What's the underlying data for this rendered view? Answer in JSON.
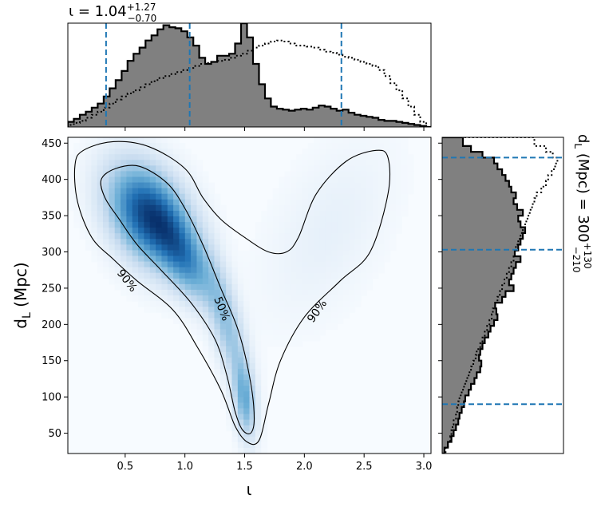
{
  "chart_data": {
    "type": "corner-plot",
    "colors": {
      "hist_fill": "#808080",
      "hist_edge": "#000000",
      "quantile_line": "#1f77b4",
      "density_light": "#f7fbff",
      "density_dark": "#08306b",
      "contour": "#000000"
    },
    "top": {
      "title_base": "ι = 1.04",
      "title_sup": "+1.27",
      "title_sub": "−0.70",
      "xlim": [
        0.02,
        3.06
      ],
      "quantiles": [
        0.34,
        1.04,
        2.31
      ],
      "bins_x": [
        0.02,
        0.07,
        0.12,
        0.17,
        0.22,
        0.27,
        0.32,
        0.37,
        0.42,
        0.47,
        0.52,
        0.57,
        0.62,
        0.67,
        0.72,
        0.77,
        0.82,
        0.87,
        0.92,
        0.97,
        1.02,
        1.07,
        1.12,
        1.17,
        1.22,
        1.27,
        1.32,
        1.37,
        1.42,
        1.47,
        1.52,
        1.57,
        1.62,
        1.67,
        1.72,
        1.77,
        1.82,
        1.87,
        1.92,
        1.97,
        2.02,
        2.07,
        2.12,
        2.17,
        2.22,
        2.27,
        2.32,
        2.37,
        2.42,
        2.47,
        2.52,
        2.57,
        2.62,
        2.67,
        2.72,
        2.77,
        2.82,
        2.87,
        2.92,
        2.97,
        3.02,
        3.06
      ],
      "hist_solid": [
        0.05,
        0.08,
        0.12,
        0.15,
        0.19,
        0.23,
        0.3,
        0.38,
        0.46,
        0.55,
        0.65,
        0.72,
        0.78,
        0.85,
        0.9,
        0.96,
        1.0,
        0.98,
        0.97,
        0.94,
        0.88,
        0.8,
        0.68,
        0.62,
        0.64,
        0.7,
        0.7,
        0.72,
        0.82,
        1.02,
        0.88,
        0.62,
        0.42,
        0.28,
        0.2,
        0.18,
        0.17,
        0.16,
        0.17,
        0.18,
        0.17,
        0.19,
        0.21,
        0.2,
        0.18,
        0.16,
        0.17,
        0.14,
        0.12,
        0.11,
        0.1,
        0.09,
        0.07,
        0.06,
        0.06,
        0.05,
        0.04,
        0.03,
        0.02,
        0.01,
        0.0
      ],
      "hist_dotted": [
        0.02,
        0.04,
        0.06,
        0.09,
        0.12,
        0.15,
        0.19,
        0.23,
        0.27,
        0.3,
        0.33,
        0.36,
        0.39,
        0.42,
        0.45,
        0.48,
        0.5,
        0.52,
        0.54,
        0.56,
        0.58,
        0.6,
        0.62,
        0.63,
        0.64,
        0.65,
        0.66,
        0.68,
        0.7,
        0.72,
        0.75,
        0.78,
        0.8,
        0.82,
        0.84,
        0.85,
        0.84,
        0.82,
        0.8,
        0.8,
        0.79,
        0.78,
        0.76,
        0.74,
        0.73,
        0.71,
        0.69,
        0.68,
        0.66,
        0.64,
        0.62,
        0.6,
        0.56,
        0.5,
        0.43,
        0.36,
        0.28,
        0.2,
        0.12,
        0.05,
        0.0
      ]
    },
    "main": {
      "xlabel": "ι",
      "ylabel_base": "d",
      "ylabel_sub": "L",
      "ylabel_suffix": " (Mpc)",
      "xlim": [
        0.02,
        3.06
      ],
      "ylim": [
        22,
        458
      ],
      "xticks": [
        0.5,
        1.0,
        1.5,
        2.0,
        2.5,
        3.0
      ],
      "xtick_labels": [
        "0.5",
        "1.0",
        "1.5",
        "2.0",
        "2.5",
        "3.0"
      ],
      "yticks": [
        50,
        100,
        150,
        200,
        250,
        300,
        350,
        400,
        450
      ],
      "ytick_labels": [
        "50",
        "100",
        "150",
        "200",
        "250",
        "300",
        "350",
        "400",
        "450"
      ],
      "density_peaks": [
        {
          "x": 0.7,
          "y": 350,
          "sx": 0.22,
          "sy": 45,
          "w": 1.0,
          "rho": -0.35
        },
        {
          "x": 1.0,
          "y": 290,
          "sx": 0.16,
          "sy": 40,
          "w": 0.55,
          "rho": -0.6
        },
        {
          "x": 1.35,
          "y": 200,
          "sx": 0.12,
          "sy": 60,
          "w": 0.35,
          "rho": -0.7
        },
        {
          "x": 1.5,
          "y": 95,
          "sx": 0.06,
          "sy": 35,
          "w": 0.45,
          "rho": -0.3
        },
        {
          "x": 2.2,
          "y": 330,
          "sx": 0.35,
          "sy": 80,
          "w": 0.06,
          "rho": 0.5
        }
      ],
      "contour_90": [
        [
          0.08,
          420
        ],
        [
          0.15,
          440
        ],
        [
          0.4,
          452
        ],
        [
          0.7,
          445
        ],
        [
          1.0,
          415
        ],
        [
          1.15,
          375
        ],
        [
          1.3,
          345
        ],
        [
          1.5,
          320
        ],
        [
          1.7,
          300
        ],
        [
          1.85,
          300
        ],
        [
          1.95,
          320
        ],
        [
          2.1,
          380
        ],
        [
          2.35,
          425
        ],
        [
          2.6,
          440
        ],
        [
          2.7,
          430
        ],
        [
          2.7,
          380
        ],
        [
          2.55,
          300
        ],
        [
          2.3,
          260
        ],
        [
          2.0,
          210
        ],
        [
          1.8,
          150
        ],
        [
          1.7,
          90
        ],
        [
          1.62,
          40
        ],
        [
          1.52,
          38
        ],
        [
          1.42,
          60
        ],
        [
          1.3,
          110
        ],
        [
          1.1,
          170
        ],
        [
          0.9,
          220
        ],
        [
          0.6,
          260
        ],
        [
          0.4,
          290
        ],
        [
          0.22,
          320
        ],
        [
          0.1,
          370
        ]
      ],
      "contour_50": [
        [
          0.3,
          400
        ],
        [
          0.42,
          415
        ],
        [
          0.62,
          418
        ],
        [
          0.85,
          395
        ],
        [
          1.0,
          360
        ],
        [
          1.15,
          310
        ],
        [
          1.3,
          250
        ],
        [
          1.45,
          190
        ],
        [
          1.55,
          120
        ],
        [
          1.58,
          70
        ],
        [
          1.55,
          50
        ],
        [
          1.48,
          55
        ],
        [
          1.42,
          80
        ],
        [
          1.35,
          130
        ],
        [
          1.25,
          180
        ],
        [
          1.05,
          230
        ],
        [
          0.8,
          275
        ],
        [
          0.6,
          310
        ],
        [
          0.45,
          345
        ],
        [
          0.33,
          375
        ]
      ],
      "contour_labels": [
        "90%",
        "50%",
        "90%"
      ]
    },
    "right": {
      "title_base": "d",
      "title_sub": "L",
      "title_mid": " (Mpc) = 300",
      "title_sup": "+130",
      "title_subscript": "−210",
      "ylim": [
        22,
        458
      ],
      "quantiles": [
        90,
        303,
        430
      ],
      "bins_y": [
        22,
        30,
        38,
        46,
        54,
        62,
        70,
        78,
        86,
        94,
        102,
        110,
        118,
        126,
        134,
        142,
        150,
        158,
        166,
        174,
        182,
        190,
        198,
        206,
        214,
        222,
        230,
        238,
        246,
        254,
        262,
        270,
        278,
        286,
        294,
        302,
        310,
        318,
        326,
        334,
        342,
        350,
        358,
        366,
        374,
        382,
        390,
        398,
        406,
        414,
        422,
        430,
        438,
        446,
        458
      ],
      "hist_solid": [
        0.02,
        0.05,
        0.08,
        0.1,
        0.12,
        0.14,
        0.15,
        0.17,
        0.19,
        0.2,
        0.23,
        0.25,
        0.28,
        0.3,
        0.33,
        0.34,
        0.32,
        0.33,
        0.35,
        0.37,
        0.4,
        0.42,
        0.45,
        0.48,
        0.47,
        0.46,
        0.52,
        0.55,
        0.62,
        0.58,
        0.6,
        0.62,
        0.64,
        0.68,
        0.63,
        0.66,
        0.68,
        0.7,
        0.72,
        0.68,
        0.66,
        0.7,
        0.65,
        0.62,
        0.64,
        0.6,
        0.58,
        0.55,
        0.52,
        0.48,
        0.45,
        0.35,
        0.25,
        0.18
      ],
      "hist_dotted": [
        0.03,
        0.05,
        0.07,
        0.08,
        0.09,
        0.1,
        0.12,
        0.13,
        0.14,
        0.15,
        0.17,
        0.19,
        0.21,
        0.23,
        0.25,
        0.27,
        0.29,
        0.3,
        0.33,
        0.35,
        0.37,
        0.39,
        0.41,
        0.43,
        0.44,
        0.46,
        0.48,
        0.5,
        0.52,
        0.54,
        0.56,
        0.58,
        0.6,
        0.62,
        0.63,
        0.64,
        0.66,
        0.68,
        0.7,
        0.72,
        0.74,
        0.76,
        0.78,
        0.8,
        0.82,
        0.86,
        0.9,
        0.92,
        0.95,
        0.98,
        1.0,
        0.96,
        0.9,
        0.8
      ]
    }
  }
}
